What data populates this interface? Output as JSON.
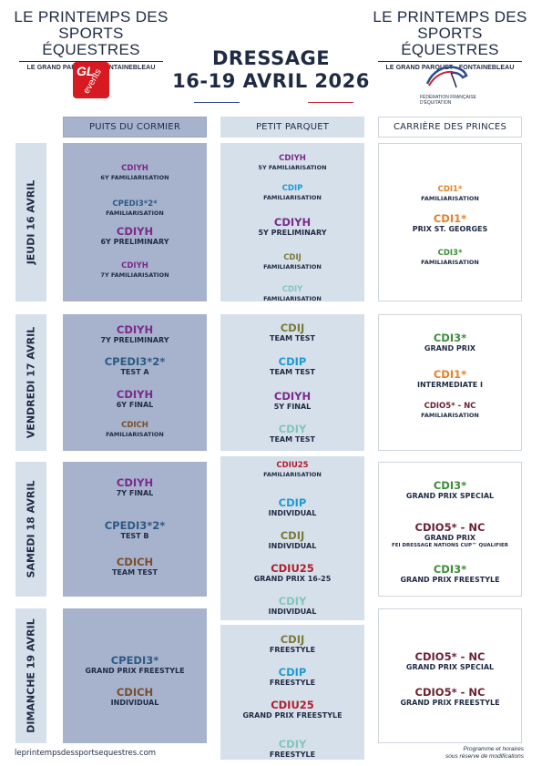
{
  "brand": {
    "line1": "LE PRINTEMPS DES",
    "line2": "SPORTS ÉQUESTRES",
    "subtitle": "LE GRAND PARQUET - FONTAINEBLEAU"
  },
  "logos": {
    "gl_events": {
      "text1": "GL",
      "text2": "events"
    },
    "ffe": {
      "line1": "FÉDÉRATION FRANÇAISE",
      "line2": "D'ÉQUITATION"
    }
  },
  "event": {
    "title": "DRESSAGE",
    "dates": "16-19 AVRIL 2026"
  },
  "colors": {
    "navy": "#1f2a44",
    "purple": "#7a2a8b",
    "cyan": "#1d9bd4",
    "steelblue": "#2c5a85",
    "olive": "#7a7a3a",
    "teal": "#7fc7be",
    "brown": "#7a4e2a",
    "orange": "#e2822b",
    "green": "#3e8c3a",
    "crimson": "#b01e2f",
    "maroon": "#6b2234",
    "col1_bg": "#a7b3cd",
    "col2_bg": "#d6e0ea"
  },
  "venues": [
    "PUITS DU CORMIER",
    "PETIT PARQUET",
    "CARRIÈRE DES PRINCES"
  ],
  "days": [
    {
      "label": "JEUDI 16 AVRIL",
      "cols": [
        [
          {
            "code": "CDIYH",
            "desc": "6Y FAMILIARISATION",
            "size": "S",
            "color": "#7a2a8b"
          },
          {
            "code": "CPEDI3*2*",
            "desc": "FAMILIARISATION",
            "size": "S",
            "color": "#2c5a85"
          },
          {
            "code": "CDIYH",
            "desc": "6Y PRELIMINARY",
            "size": "L",
            "color": "#7a2a8b"
          },
          {
            "code": "CDIYH",
            "desc": "7Y FAMILIARISATION",
            "size": "S",
            "color": "#7a2a8b"
          }
        ],
        [
          {
            "code": "CDIYH",
            "desc": "5Y FAMILIARISATION",
            "size": "S",
            "color": "#7a2a8b"
          },
          {
            "code": "CDIP",
            "desc": "FAMILIARISATION",
            "size": "S",
            "color": "#1d9bd4"
          },
          {
            "code": "CDIYH",
            "desc": "5Y PRELIMINARY",
            "size": "L",
            "color": "#7a2a8b"
          },
          {
            "code": "CDIJ",
            "desc": "FAMILIARISATION",
            "size": "S",
            "color": "#7a7a3a"
          },
          {
            "code": "CDIY",
            "desc": "FAMILIARISATION",
            "size": "S",
            "color": "#7fc7be"
          }
        ],
        [
          {
            "code": "CDI1*",
            "desc": "FAMILIARISATION",
            "size": "S",
            "color": "#e2822b"
          },
          {
            "code": "CDI1*",
            "desc": "PRIX ST. GEORGES",
            "size": "L",
            "color": "#e2822b"
          },
          {
            "code": "CDI3*",
            "desc": "FAMILIARISATION",
            "size": "S",
            "color": "#3e8c3a"
          }
        ]
      ]
    },
    {
      "label": "VENDREDI 17 AVRIL",
      "cols": [
        [
          {
            "code": "CDIYH",
            "desc": "7Y PRELIMINARY",
            "size": "L",
            "color": "#7a2a8b"
          },
          {
            "code": "CPEDI3*2*",
            "desc": "TEST A",
            "size": "L",
            "color": "#2c5a85"
          },
          {
            "code": "CDIYH",
            "desc": "6Y FINAL",
            "size": "L",
            "color": "#7a2a8b"
          },
          {
            "code": "CDICH",
            "desc": "FAMILIARISATION",
            "size": "S",
            "color": "#7a4e2a"
          }
        ],
        [
          {
            "code": "CDIJ",
            "desc": "TEAM TEST",
            "size": "L",
            "color": "#7a7a3a"
          },
          {
            "code": "CDIP",
            "desc": "TEAM TEST",
            "size": "L",
            "color": "#1d9bd4"
          },
          {
            "code": "CDIYH",
            "desc": "5Y FINAL",
            "size": "L",
            "color": "#7a2a8b"
          },
          {
            "code": "CDIY",
            "desc": "TEAM TEST",
            "size": "L",
            "color": "#7fc7be"
          }
        ],
        [
          {
            "code": "CDI3*",
            "desc": "GRAND PRIX",
            "size": "L",
            "color": "#3e8c3a"
          },
          {
            "code": "CDI1*",
            "desc": "INTERMEDIATE I",
            "size": "L",
            "color": "#e2822b"
          },
          {
            "code": "CDIO5* - NC",
            "desc": "FAMILIARISATION",
            "size": "S",
            "color": "#6b2234"
          }
        ]
      ]
    },
    {
      "label": "SAMEDI 18 AVRIL",
      "cols": [
        [
          {
            "code": "CDIYH",
            "desc": "7Y FINAL",
            "size": "L",
            "color": "#7a2a8b"
          },
          {
            "code": "CPEDI3*2*",
            "desc": "TEST B",
            "size": "L",
            "color": "#2c5a85"
          },
          {
            "code": "CDICH",
            "desc": "TEAM TEST",
            "size": "L",
            "color": "#7a4e2a"
          }
        ],
        [
          {
            "code": "CDIU25",
            "desc": "FAMILIARISATION",
            "size": "S",
            "color": "#b01e2f"
          },
          {
            "code": "CDIP",
            "desc": "INDIVIDUAL",
            "size": "L",
            "color": "#1d9bd4"
          },
          {
            "code": "CDIJ",
            "desc": "INDIVIDUAL",
            "size": "L",
            "color": "#7a7a3a"
          },
          {
            "code": "CDIU25",
            "desc": "GRAND PRIX 16-25",
            "size": "L",
            "color": "#b01e2f"
          },
          {
            "code": "CDIY",
            "desc": "INDIVIDUAL",
            "size": "L",
            "color": "#7fc7be"
          }
        ],
        [
          {
            "code": "CDI3*",
            "desc": "GRAND PRIX SPECIAL",
            "size": "L",
            "color": "#3e8c3a"
          },
          {
            "code": "CDIO5* - NC",
            "desc": "GRAND PRIX",
            "desc2": "FEI DRESSAGE NATIONS CUP™ QUALIFIER",
            "size": "L",
            "color": "#6b2234"
          },
          {
            "code": "CDI3*",
            "desc": "GRAND PRIX FREESTYLE",
            "size": "L",
            "color": "#3e8c3a"
          }
        ]
      ]
    },
    {
      "label": "DIMANCHE 19 AVRIL",
      "cols": [
        [
          {
            "code": "CPEDI3*",
            "desc": "GRAND PRIX FREESTYLE",
            "size": "L",
            "color": "#2c5a85"
          },
          {
            "code": "CDICH",
            "desc": "INDIVIDUAL",
            "size": "L",
            "color": "#7a4e2a"
          }
        ],
        [
          {
            "code": "CDIJ",
            "desc": "FREESTYLE",
            "size": "L",
            "color": "#7a7a3a"
          },
          {
            "code": "CDIP",
            "desc": "FREESTYLE",
            "size": "L",
            "color": "#1d9bd4"
          },
          {
            "code": "CDIU25",
            "desc": "GRAND PRIX FREESTYLE",
            "size": "L",
            "color": "#b01e2f"
          },
          {
            "code": "CDIY",
            "desc": "FREESTYLE",
            "size": "L",
            "color": "#7fc7be"
          }
        ],
        [
          {
            "code": "CDIO5* - NC",
            "desc": "GRAND PRIX SPECIAL",
            "size": "L",
            "color": "#6b2234"
          },
          {
            "code": "CDIO5* - NC",
            "desc": "GRAND PRIX FREESTYLE",
            "size": "L",
            "color": "#6b2234"
          }
        ]
      ]
    }
  ],
  "footer": {
    "url": "leprintempsdessportsequestres.com",
    "note_line1": "Programme et horaires",
    "note_line2": "sous réserve de modifications"
  }
}
